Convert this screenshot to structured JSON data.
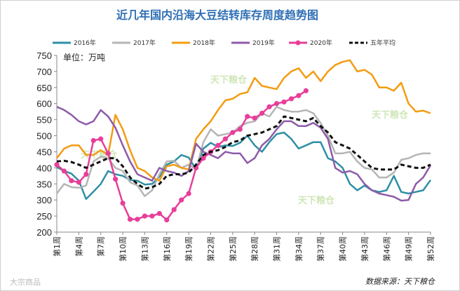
{
  "chart_data": {
    "type": "line",
    "title": "近几年国内沿海大豆结转库存周度趋势图",
    "unit_label": "单位：万吨",
    "source_label": "数据来源：天下粮仓",
    "footer_watermark": "大宗商品",
    "watermark": "天下粮仓",
    "ylim": [
      200,
      750
    ],
    "yticks": [
      200,
      250,
      300,
      350,
      400,
      450,
      500,
      550,
      600,
      650,
      700,
      750
    ],
    "xlim": [
      1,
      52
    ],
    "xtick_weeks": [
      1,
      4,
      7,
      10,
      13,
      16,
      19,
      22,
      25,
      28,
      31,
      34,
      37,
      40,
      43,
      46,
      49,
      52
    ],
    "xtick_labels": [
      "第1周",
      "第4周",
      "第7周",
      "第10周",
      "第13周",
      "第16周",
      "第19周",
      "第22周",
      "第25周",
      "第28周",
      "第31周",
      "第34周",
      "第37周",
      "第40周",
      "第43周",
      "第46周",
      "第49周",
      "第52周"
    ],
    "series": [
      {
        "name": "2016年",
        "color": "#2e8fa5",
        "style": "solid",
        "values": [
          402,
          390,
          382,
          360,
          303,
          326,
          350,
          390,
          380,
          375,
          362,
          360,
          348,
          350,
          372,
          410,
          420,
          440,
          432,
          395,
          460,
          478,
          465,
          470,
          468,
          478,
          500,
          470,
          450,
          480,
          505,
          510,
          490,
          460,
          470,
          480,
          480,
          430,
          420,
          400,
          350,
          330,
          345,
          330,
          325,
          330,
          375,
          325,
          320,
          325,
          330,
          362
        ]
      },
      {
        "name": "2017年",
        "color": "#b5b5b5",
        "style": "solid",
        "values": [
          320,
          350,
          340,
          338,
          345,
          420,
          435,
          430,
          400,
          390,
          355,
          345,
          312,
          330,
          380,
          420,
          422,
          400,
          410,
          395,
          480,
          520,
          500,
          505,
          510,
          530,
          540,
          545,
          570,
          560,
          590,
          580,
          575,
          575,
          580,
          570,
          540,
          500,
          445,
          445,
          450,
          420,
          400,
          395,
          370,
          370,
          385,
          425,
          430,
          440,
          445,
          445
        ]
      },
      {
        "name": "2018年",
        "color": "#f39c12",
        "style": "solid",
        "values": [
          430,
          460,
          470,
          470,
          440,
          440,
          455,
          440,
          565,
          520,
          455,
          400,
          390,
          370,
          360,
          405,
          410,
          400,
          395,
          490,
          520,
          545,
          580,
          610,
          615,
          630,
          635,
          680,
          655,
          650,
          645,
          680,
          700,
          710,
          680,
          700,
          670,
          700,
          720,
          730,
          735,
          700,
          705,
          690,
          650,
          650,
          640,
          665,
          600,
          575,
          578,
          570
        ]
      },
      {
        "name": "2019年",
        "color": "#8e5ba8",
        "style": "solid",
        "values": [
          590,
          580,
          565,
          545,
          535,
          545,
          580,
          560,
          525,
          470,
          420,
          380,
          370,
          360,
          400,
          390,
          385,
          375,
          390,
          475,
          450,
          440,
          430,
          450,
          445,
          445,
          415,
          430,
          470,
          490,
          520,
          545,
          545,
          530,
          530,
          540,
          525,
          490,
          400,
          385,
          390,
          380,
          350,
          330,
          320,
          315,
          310,
          298,
          300,
          350,
          370,
          408
        ]
      },
      {
        "name": "2020年",
        "color": "#e83e9a",
        "style": "marker",
        "values": [
          410,
          390,
          360,
          355,
          380,
          485,
          490,
          445,
          365,
          290,
          240,
          240,
          250,
          250,
          258,
          238,
          270,
          300,
          320,
          400,
          430,
          450,
          470,
          490,
          510,
          520,
          560,
          555,
          570,
          590,
          600,
          605,
          615,
          625,
          640
        ]
      },
      {
        "name": "五年平均",
        "color": "#111111",
        "style": "dashed",
        "values": [
          420,
          422,
          418,
          410,
          400,
          410,
          420,
          430,
          430,
          405,
          370,
          350,
          335,
          340,
          350,
          375,
          380,
          380,
          385,
          410,
          440,
          450,
          455,
          465,
          480,
          485,
          500,
          505,
          510,
          520,
          530,
          560,
          555,
          550,
          545,
          555,
          530,
          510,
          480,
          470,
          460,
          440,
          420,
          400,
          395,
          395,
          395,
          410,
          405,
          400,
          400,
          410
        ]
      }
    ]
  }
}
